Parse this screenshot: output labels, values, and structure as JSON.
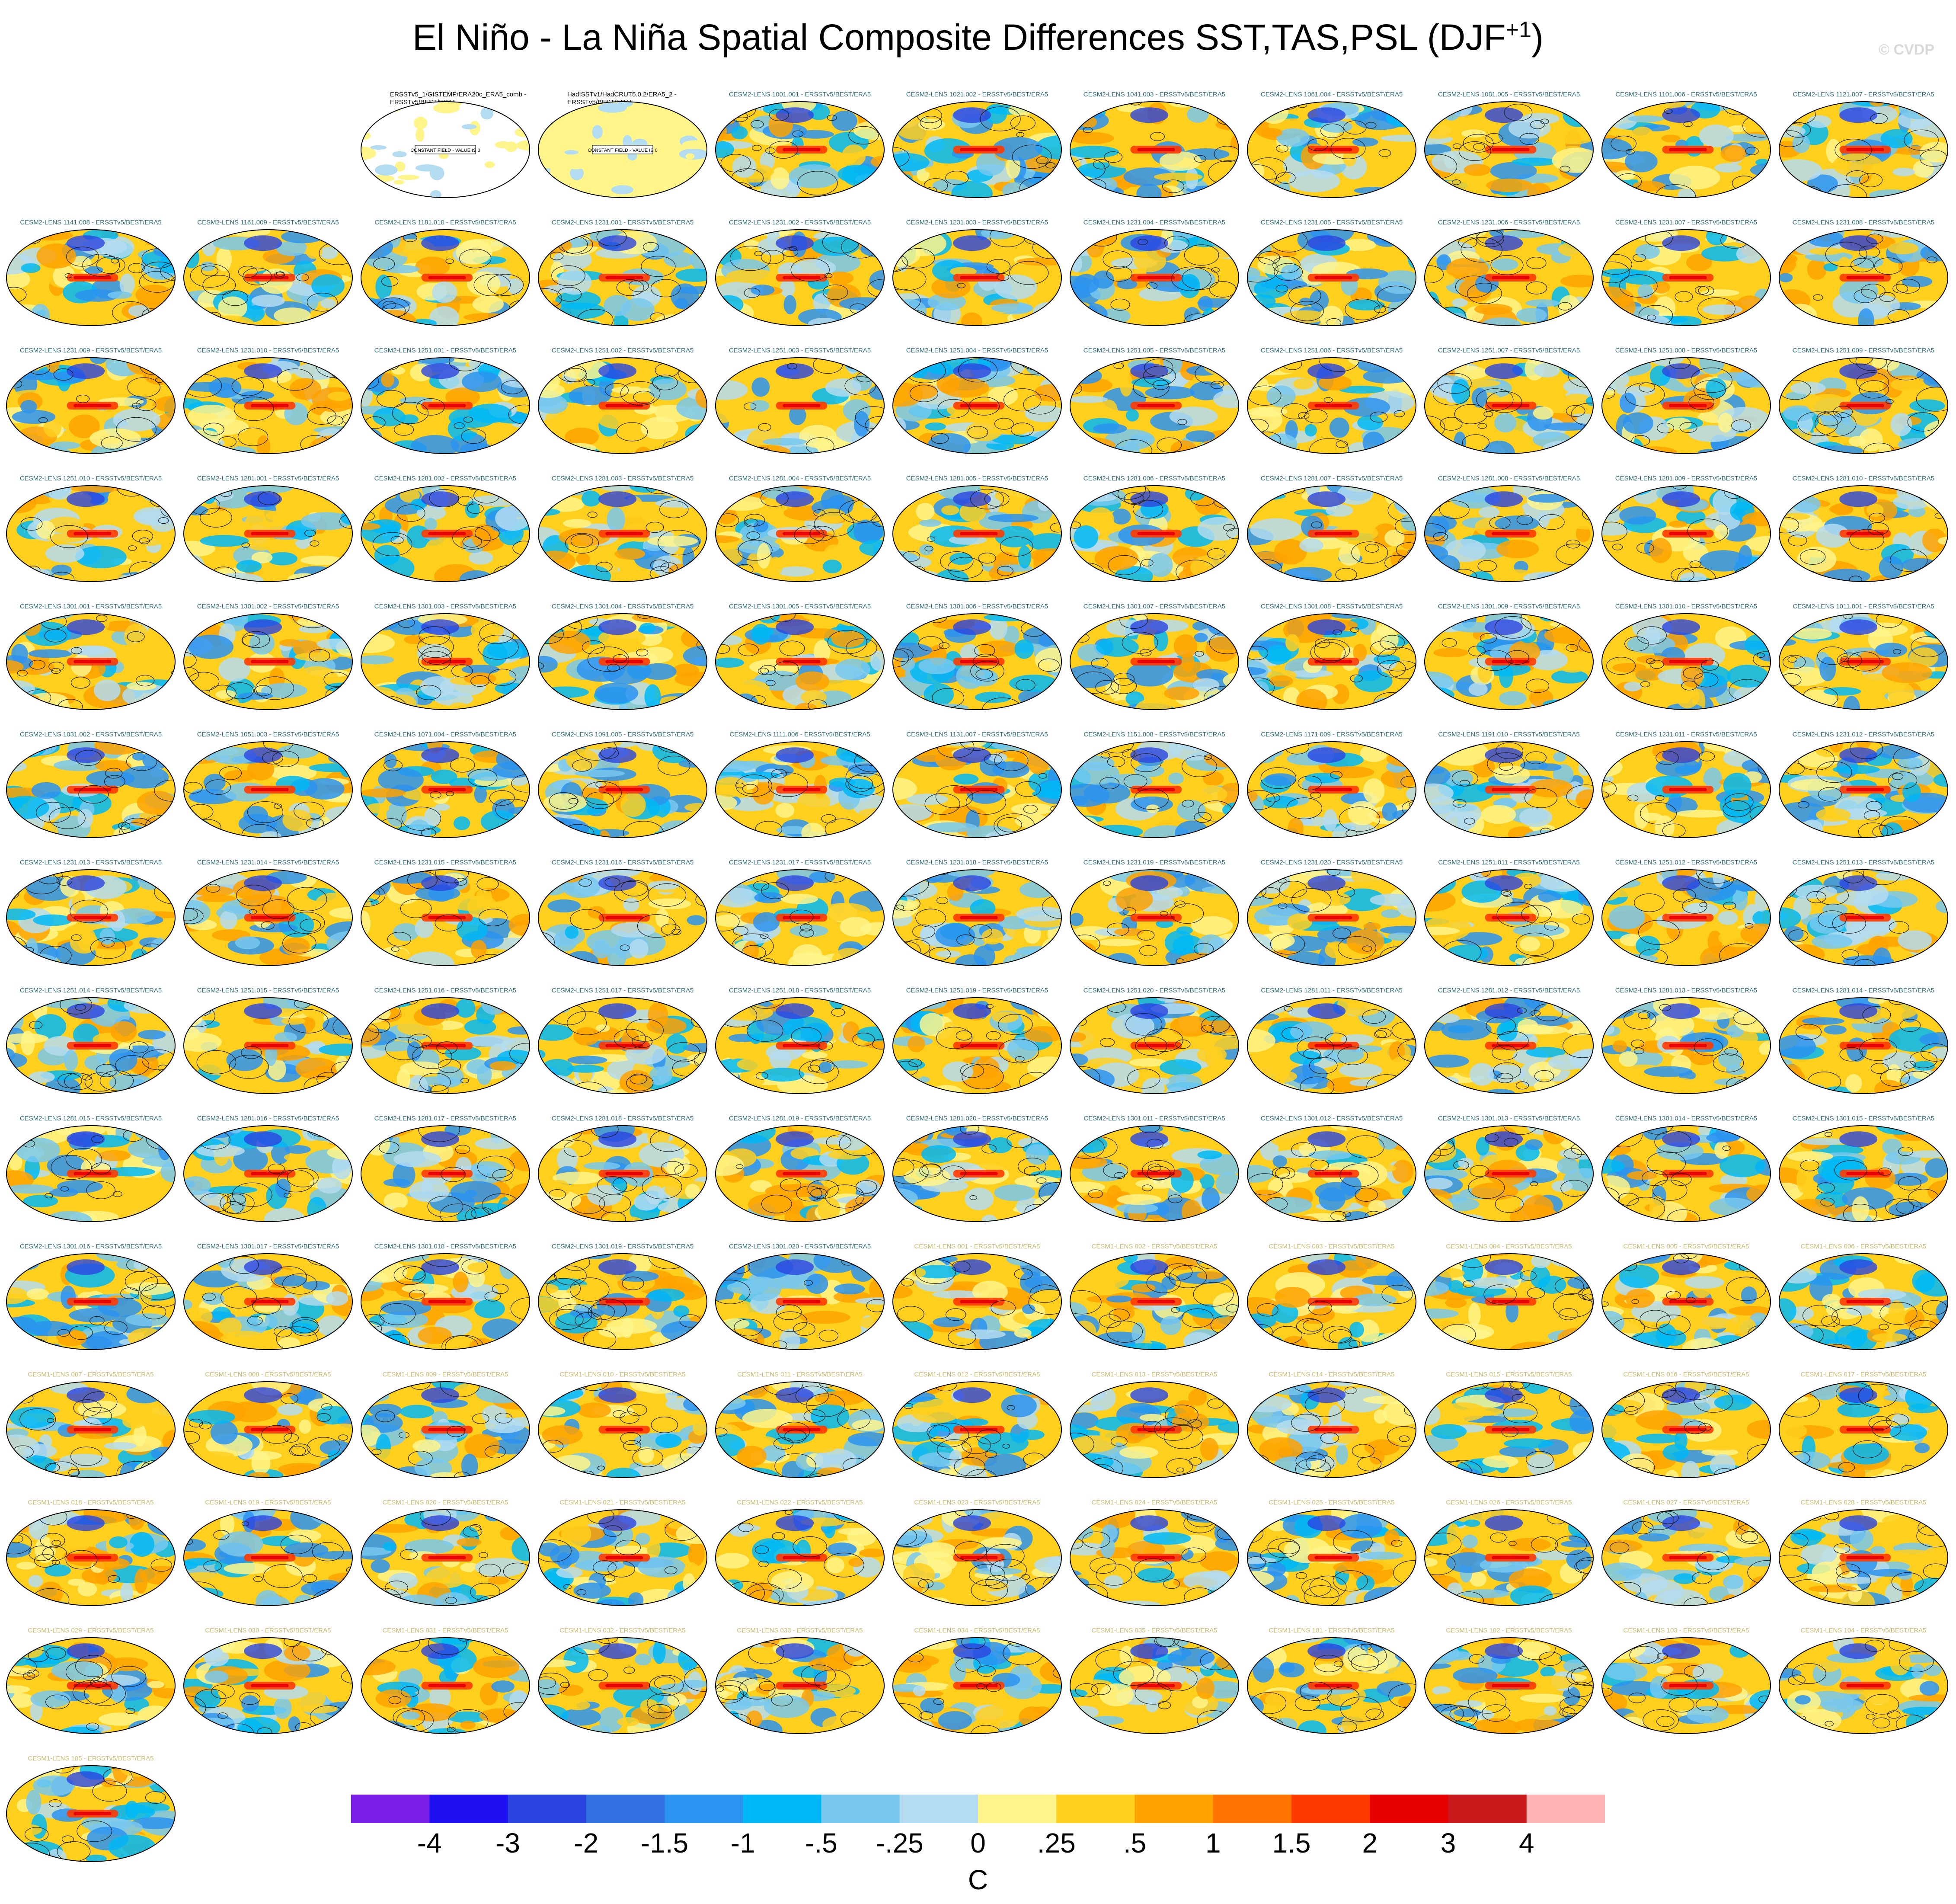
{
  "title_main": "El Niño - La Niña Spatial Composite Differences SST,TAS,PSL (DJF",
  "title_sup": "+1",
  "title_close": ")",
  "watermark": "© CVDP",
  "colors": {
    "panel_label_cesm2": "#2a6a78",
    "panel_label_cesm1": "#c9b86a",
    "panel_label_obs": "#000000"
  },
  "chart_data": {
    "type": "heatmap",
    "title": "El Niño - La Niña Spatial Composite Differences SST,TAS,PSL (DJF+1)",
    "projection": "global ellipse map (Robinson-like), filled SST/TAS composite with PSL contours",
    "grid_rows": 13,
    "grid_cols": 11,
    "panels": [
      {
        "label": "ERSSTv5_1/GISTEMP/ERA20c_ERA5_comb - ERSSTv5/BEST/ERA5",
        "type": "obs_constant",
        "note": "CONSTANT FIELD - VALUE IS 0"
      },
      {
        "label": "HadISSTv1/HadCRUT5.0.2/ERA5_2 - ERSSTv5/BEST/ERA5",
        "type": "obs_constant",
        "note": "CONSTANT FIELD - VALUE IS 0"
      },
      {
        "label": "CESM2-LENS 1001.001 - ERSSTv5/BEST/ERA5"
      },
      {
        "label": "CESM2-LENS 1021.002 - ERSSTv5/BEST/ERA5"
      },
      {
        "label": "CESM2-LENS 1041.003 - ERSSTv5/BEST/ERA5"
      },
      {
        "label": "CESM2-LENS 1061.004 - ERSSTv5/BEST/ERA5"
      },
      {
        "label": "CESM2-LENS 1081.005 - ERSSTv5/BEST/ERA5"
      },
      {
        "label": "CESM2-LENS 1101.006 - ERSSTv5/BEST/ERA5"
      },
      {
        "label": "CESM2-LENS 1121.007 - ERSSTv5/BEST/ERA5"
      },
      {
        "label": "CESM2-LENS 1141.008 - ERSSTv5/BEST/ERA5"
      },
      {
        "label": "CESM2-LENS 1161.009 - ERSSTv5/BEST/ERA5"
      },
      {
        "label": "CESM2-LENS 1181.010 - ERSSTv5/BEST/ERA5"
      },
      {
        "label": "CESM2-LENS 1231.001 - ERSSTv5/BEST/ERA5"
      },
      {
        "label": "CESM2-LENS 1231.002 - ERSSTv5/BEST/ERA5"
      },
      {
        "label": "CESM2-LENS 1231.003 - ERSSTv5/BEST/ERA5"
      },
      {
        "label": "CESM2-LENS 1231.004 - ERSSTv5/BEST/ERA5"
      },
      {
        "label": "CESM2-LENS 1231.005 - ERSSTv5/BEST/ERA5"
      },
      {
        "label": "CESM2-LENS 1231.006 - ERSSTv5/BEST/ERA5"
      },
      {
        "label": "CESM2-LENS 1231.007 - ERSSTv5/BEST/ERA5"
      },
      {
        "label": "CESM2-LENS 1231.008 - ERSSTv5/BEST/ERA5"
      },
      {
        "label": "CESM2-LENS 1231.009 - ERSSTv5/BEST/ERA5"
      },
      {
        "label": "CESM2-LENS 1231.010 - ERSSTv5/BEST/ERA5"
      },
      {
        "label": "CESM2-LENS 1251.001 - ERSSTv5/BEST/ERA5"
      },
      {
        "label": "CESM2-LENS 1251.002 - ERSSTv5/BEST/ERA5"
      },
      {
        "label": "CESM2-LENS 1251.003 - ERSSTv5/BEST/ERA5"
      },
      {
        "label": "CESM2-LENS 1251.004 - ERSSTv5/BEST/ERA5"
      },
      {
        "label": "CESM2-LENS 1251.005 - ERSSTv5/BEST/ERA5"
      },
      {
        "label": "CESM2-LENS 1251.006 - ERSSTv5/BEST/ERA5"
      },
      {
        "label": "CESM2-LENS 1251.007 - ERSSTv5/BEST/ERA5"
      },
      {
        "label": "CESM2-LENS 1251.008 - ERSSTv5/BEST/ERA5"
      },
      {
        "label": "CESM2-LENS 1251.009 - ERSSTv5/BEST/ERA5"
      },
      {
        "label": "CESM2-LENS 1251.010 - ERSSTv5/BEST/ERA5"
      },
      {
        "label": "CESM2-LENS 1281.001 - ERSSTv5/BEST/ERA5"
      },
      {
        "label": "CESM2-LENS 1281.002 - ERSSTv5/BEST/ERA5"
      },
      {
        "label": "CESM2-LENS 1281.003 - ERSSTv5/BEST/ERA5"
      },
      {
        "label": "CESM2-LENS 1281.004 - ERSSTv5/BEST/ERA5"
      },
      {
        "label": "CESM2-LENS 1281.005 - ERSSTv5/BEST/ERA5"
      },
      {
        "label": "CESM2-LENS 1281.006 - ERSSTv5/BEST/ERA5"
      },
      {
        "label": "CESM2-LENS 1281.007 - ERSSTv5/BEST/ERA5"
      },
      {
        "label": "CESM2-LENS 1281.008 - ERSSTv5/BEST/ERA5"
      },
      {
        "label": "CESM2-LENS 1281.009 - ERSSTv5/BEST/ERA5"
      },
      {
        "label": "CESM2-LENS 1281.010 - ERSSTv5/BEST/ERA5"
      },
      {
        "label": "CESM2-LENS 1301.001 - ERSSTv5/BEST/ERA5"
      },
      {
        "label": "CESM2-LENS 1301.002 - ERSSTv5/BEST/ERA5"
      },
      {
        "label": "CESM2-LENS 1301.003 - ERSSTv5/BEST/ERA5"
      },
      {
        "label": "CESM2-LENS 1301.004 - ERSSTv5/BEST/ERA5"
      },
      {
        "label": "CESM2-LENS 1301.005 - ERSSTv5/BEST/ERA5"
      },
      {
        "label": "CESM2-LENS 1301.006 - ERSSTv5/BEST/ERA5"
      },
      {
        "label": "CESM2-LENS 1301.007 - ERSSTv5/BEST/ERA5"
      },
      {
        "label": "CESM2-LENS 1301.008 - ERSSTv5/BEST/ERA5"
      },
      {
        "label": "CESM2-LENS 1301.009 - ERSSTv5/BEST/ERA5"
      },
      {
        "label": "CESM2-LENS 1301.010 - ERSSTv5/BEST/ERA5"
      },
      {
        "label": "CESM2-LENS 1011.001 - ERSSTv5/BEST/ERA5"
      },
      {
        "label": "CESM2-LENS 1031.002 - ERSSTv5/BEST/ERA5"
      },
      {
        "label": "CESM2-LENS 1051.003 - ERSSTv5/BEST/ERA5"
      },
      {
        "label": "CESM2-LENS 1071.004 - ERSSTv5/BEST/ERA5"
      },
      {
        "label": "CESM2-LENS 1091.005 - ERSSTv5/BEST/ERA5"
      },
      {
        "label": "CESM2-LENS 1111.006 - ERSSTv5/BEST/ERA5"
      },
      {
        "label": "CESM2-LENS 1131.007 - ERSSTv5/BEST/ERA5"
      },
      {
        "label": "CESM2-LENS 1151.008 - ERSSTv5/BEST/ERA5"
      },
      {
        "label": "CESM2-LENS 1171.009 - ERSSTv5/BEST/ERA5"
      },
      {
        "label": "CESM2-LENS 1191.010 - ERSSTv5/BEST/ERA5"
      },
      {
        "label": "CESM2-LENS 1231.011 - ERSSTv5/BEST/ERA5"
      },
      {
        "label": "CESM2-LENS 1231.012 - ERSSTv5/BEST/ERA5"
      },
      {
        "label": "CESM2-LENS 1231.013 - ERSSTv5/BEST/ERA5"
      },
      {
        "label": "CESM2-LENS 1231.014 - ERSSTv5/BEST/ERA5"
      },
      {
        "label": "CESM2-LENS 1231.015 - ERSSTv5/BEST/ERA5"
      },
      {
        "label": "CESM2-LENS 1231.016 - ERSSTv5/BEST/ERA5"
      },
      {
        "label": "CESM2-LENS 1231.017 - ERSSTv5/BEST/ERA5"
      },
      {
        "label": "CESM2-LENS 1231.018 - ERSSTv5/BEST/ERA5"
      },
      {
        "label": "CESM2-LENS 1231.019 - ERSSTv5/BEST/ERA5"
      },
      {
        "label": "CESM2-LENS 1231.020 - ERSSTv5/BEST/ERA5"
      },
      {
        "label": "CESM2-LENS 1251.011 - ERSSTv5/BEST/ERA5"
      },
      {
        "label": "CESM2-LENS 1251.012 - ERSSTv5/BEST/ERA5"
      },
      {
        "label": "CESM2-LENS 1251.013 - ERSSTv5/BEST/ERA5"
      },
      {
        "label": "CESM2-LENS 1251.014 - ERSSTv5/BEST/ERA5"
      },
      {
        "label": "CESM2-LENS 1251.015 - ERSSTv5/BEST/ERA5"
      },
      {
        "label": "CESM2-LENS 1251.016 - ERSSTv5/BEST/ERA5"
      },
      {
        "label": "CESM2-LENS 1251.017 - ERSSTv5/BEST/ERA5"
      },
      {
        "label": "CESM2-LENS 1251.018 - ERSSTv5/BEST/ERA5"
      },
      {
        "label": "CESM2-LENS 1251.019 - ERSSTv5/BEST/ERA5"
      },
      {
        "label": "CESM2-LENS 1251.020 - ERSSTv5/BEST/ERA5"
      },
      {
        "label": "CESM2-LENS 1281.011 - ERSSTv5/BEST/ERA5"
      },
      {
        "label": "CESM2-LENS 1281.012 - ERSSTv5/BEST/ERA5"
      },
      {
        "label": "CESM2-LENS 1281.013 - ERSSTv5/BEST/ERA5"
      },
      {
        "label": "CESM2-LENS 1281.014 - ERSSTv5/BEST/ERA5"
      },
      {
        "label": "CESM2-LENS 1281.015 - ERSSTv5/BEST/ERA5"
      },
      {
        "label": "CESM2-LENS 1281.016 - ERSSTv5/BEST/ERA5"
      },
      {
        "label": "CESM2-LENS 1281.017 - ERSSTv5/BEST/ERA5"
      },
      {
        "label": "CESM2-LENS 1281.018 - ERSSTv5/BEST/ERA5"
      },
      {
        "label": "CESM2-LENS 1281.019 - ERSSTv5/BEST/ERA5"
      },
      {
        "label": "CESM2-LENS 1281.020 - ERSSTv5/BEST/ERA5"
      },
      {
        "label": "CESM2-LENS 1301.011 - ERSSTv5/BEST/ERA5"
      },
      {
        "label": "CESM2-LENS 1301.012 - ERSSTv5/BEST/ERA5"
      },
      {
        "label": "CESM2-LENS 1301.013 - ERSSTv5/BEST/ERA5"
      },
      {
        "label": "CESM2-LENS 1301.014 - ERSSTv5/BEST/ERA5"
      },
      {
        "label": "CESM2-LENS 1301.015 - ERSSTv5/BEST/ERA5"
      },
      {
        "label": "CESM2-LENS 1301.016 - ERSSTv5/BEST/ERA5"
      },
      {
        "label": "CESM2-LENS 1301.017 - ERSSTv5/BEST/ERA5"
      },
      {
        "label": "CESM2-LENS 1301.018 - ERSSTv5/BEST/ERA5"
      },
      {
        "label": "CESM2-LENS 1301.019 - ERSSTv5/BEST/ERA5"
      },
      {
        "label": "CESM2-LENS 1301.020 - ERSSTv5/BEST/ERA5"
      },
      {
        "label": "CESM1-LENS 001 - ERSSTv5/BEST/ERA5",
        "model": "cesm1"
      },
      {
        "label": "CESM1-LENS 002 - ERSSTv5/BEST/ERA5",
        "model": "cesm1"
      },
      {
        "label": "CESM1-LENS 003 - ERSSTv5/BEST/ERA5",
        "model": "cesm1"
      },
      {
        "label": "CESM1-LENS 004 - ERSSTv5/BEST/ERA5",
        "model": "cesm1"
      },
      {
        "label": "CESM1-LENS 005 - ERSSTv5/BEST/ERA5",
        "model": "cesm1"
      },
      {
        "label": "CESM1-LENS 006 - ERSSTv5/BEST/ERA5",
        "model": "cesm1"
      },
      {
        "label": "CESM1-LENS 007 - ERSSTv5/BEST/ERA5",
        "model": "cesm1"
      },
      {
        "label": "CESM1-LENS 008 - ERSSTv5/BEST/ERA5",
        "model": "cesm1"
      },
      {
        "label": "CESM1-LENS 009 - ERSSTv5/BEST/ERA5",
        "model": "cesm1"
      },
      {
        "label": "CESM1-LENS 010 - ERSSTv5/BEST/ERA5",
        "model": "cesm1"
      },
      {
        "label": "CESM1-LENS 011 - ERSSTv5/BEST/ERA5",
        "model": "cesm1"
      },
      {
        "label": "CESM1-LENS 012 - ERSSTv5/BEST/ERA5",
        "model": "cesm1"
      },
      {
        "label": "CESM1-LENS 013 - ERSSTv5/BEST/ERA5",
        "model": "cesm1"
      },
      {
        "label": "CESM1-LENS 014 - ERSSTv5/BEST/ERA5",
        "model": "cesm1"
      },
      {
        "label": "CESM1-LENS 015 - ERSSTv5/BEST/ERA5",
        "model": "cesm1"
      },
      {
        "label": "CESM1-LENS 016 - ERSSTv5/BEST/ERA5",
        "model": "cesm1"
      },
      {
        "label": "CESM1-LENS 017 - ERSSTv5/BEST/ERA5",
        "model": "cesm1"
      },
      {
        "label": "CESM1-LENS 018 - ERSSTv5/BEST/ERA5",
        "model": "cesm1"
      },
      {
        "label": "CESM1-LENS 019 - ERSSTv5/BEST/ERA5",
        "model": "cesm1"
      },
      {
        "label": "CESM1-LENS 020 - ERSSTv5/BEST/ERA5",
        "model": "cesm1"
      },
      {
        "label": "CESM1-LENS 021 - ERSSTv5/BEST/ERA5",
        "model": "cesm1"
      },
      {
        "label": "CESM1-LENS 022 - ERSSTv5/BEST/ERA5",
        "model": "cesm1"
      },
      {
        "label": "CESM1-LENS 023 - ERSSTv5/BEST/ERA5",
        "model": "cesm1"
      },
      {
        "label": "CESM1-LENS 024 - ERSSTv5/BEST/ERA5",
        "model": "cesm1"
      },
      {
        "label": "CESM1-LENS 025 - ERSSTv5/BEST/ERA5",
        "model": "cesm1"
      },
      {
        "label": "CESM1-LENS 026 - ERSSTv5/BEST/ERA5",
        "model": "cesm1"
      },
      {
        "label": "CESM1-LENS 027 - ERSSTv5/BEST/ERA5",
        "model": "cesm1"
      },
      {
        "label": "CESM1-LENS 028 - ERSSTv5/BEST/ERA5",
        "model": "cesm1"
      },
      {
        "label": "CESM1-LENS 029 - ERSSTv5/BEST/ERA5",
        "model": "cesm1"
      },
      {
        "label": "CESM1-LENS 030 - ERSSTv5/BEST/ERA5",
        "model": "cesm1"
      },
      {
        "label": "CESM1-LENS 031 - ERSSTv5/BEST/ERA5",
        "model": "cesm1"
      },
      {
        "label": "CESM1-LENS 032 - ERSSTv5/BEST/ERA5",
        "model": "cesm1"
      },
      {
        "label": "CESM1-LENS 033 - ERSSTv5/BEST/ERA5",
        "model": "cesm1"
      },
      {
        "label": "CESM1-LENS 034 - ERSSTv5/BEST/ERA5",
        "model": "cesm1"
      },
      {
        "label": "CESM1-LENS 035 - ERSSTv5/BEST/ERA5",
        "model": "cesm1"
      },
      {
        "label": "CESM1-LENS 101 - ERSSTv5/BEST/ERA5",
        "model": "cesm1"
      },
      {
        "label": "CESM1-LENS 102 - ERSSTv5/BEST/ERA5",
        "model": "cesm1"
      },
      {
        "label": "CESM1-LENS 103 - ERSSTv5/BEST/ERA5",
        "model": "cesm1"
      },
      {
        "label": "CESM1-LENS 104 - ERSSTv5/BEST/ERA5",
        "model": "cesm1"
      },
      {
        "label": "CESM1-LENS 105 - ERSSTv5/BEST/ERA5",
        "model": "cesm1"
      }
    ],
    "colorbar": {
      "unit": "C",
      "levels": [
        "-4",
        "-3",
        "-2",
        "-1.5",
        "-1",
        "-.5",
        "-.25",
        "0",
        ".25",
        ".5",
        "1",
        "1.5",
        "2",
        "3",
        "4"
      ],
      "colors": [
        "#7a1fe8",
        "#1e10f0",
        "#2a44e0",
        "#3070e0",
        "#2c93f0",
        "#00b8f6",
        "#78c8ee",
        "#b4dcf0",
        "#fff58a",
        "#ffcf1e",
        "#ffa200",
        "#ff7300",
        "#ff3a00",
        "#e60000",
        "#c81a1a",
        "#ffb4b4"
      ]
    }
  }
}
